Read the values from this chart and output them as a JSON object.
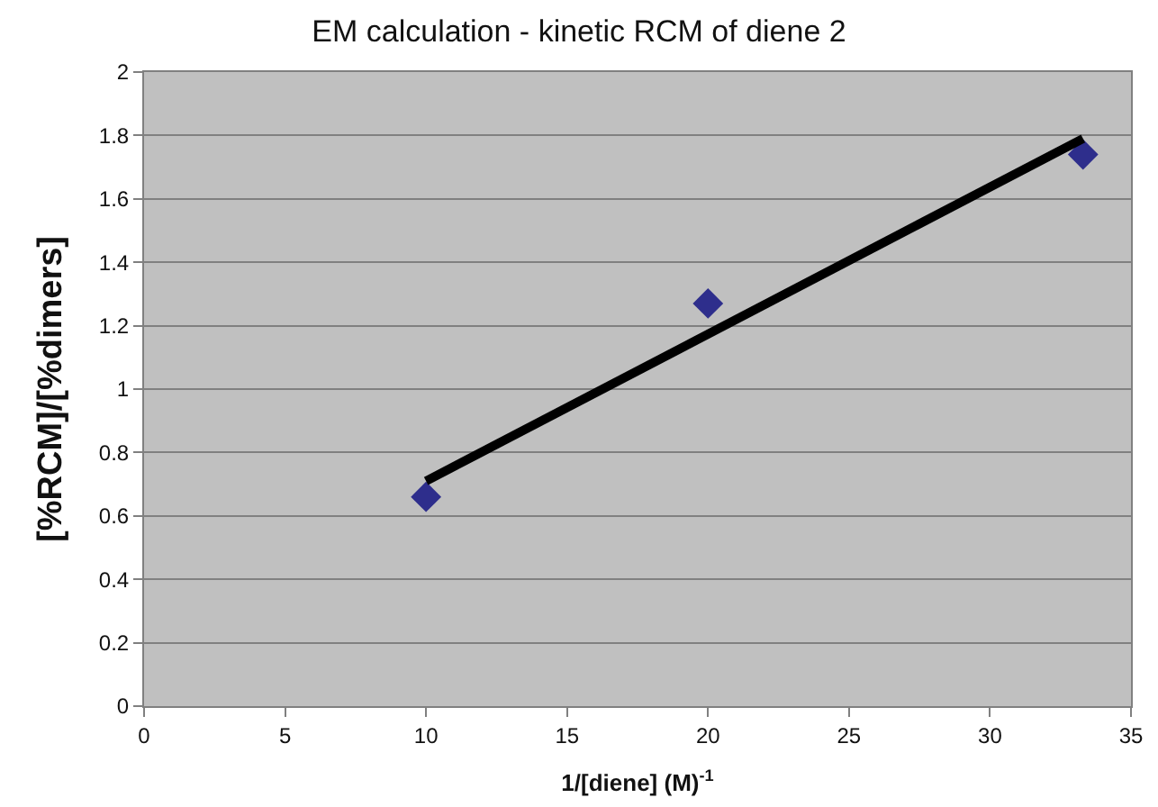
{
  "chart_data": {
    "type": "scatter",
    "title": "EM calculation - kinetic RCM of diene 2",
    "xlabel": "1/[diene] (M)$^{-1}$",
    "ylabel": "[%RCM]/[%dimers]",
    "series": [
      {
        "color": "#2e2e8c",
        "marker": "diamond",
        "x": [
          10,
          20,
          33.3
        ],
        "values": [
          0.66,
          1.27,
          1.74
        ]
      },
      {
        "type": "line",
        "color": "#000000",
        "marker": "none",
        "x": [
          10,
          33.3
        ],
        "values": [
          0.71,
          1.79
        ]
      }
    ],
    "xlim": [
      0,
      35
    ],
    "xticks": [
      0,
      5,
      10,
      15,
      20,
      25,
      30,
      35
    ],
    "ylim": [
      0,
      2
    ],
    "yticks": [
      0,
      0.2,
      0.4,
      0.6,
      0.8,
      1,
      1.2,
      1.4,
      1.6,
      1.8,
      2
    ],
    "grid": "y"
  }
}
